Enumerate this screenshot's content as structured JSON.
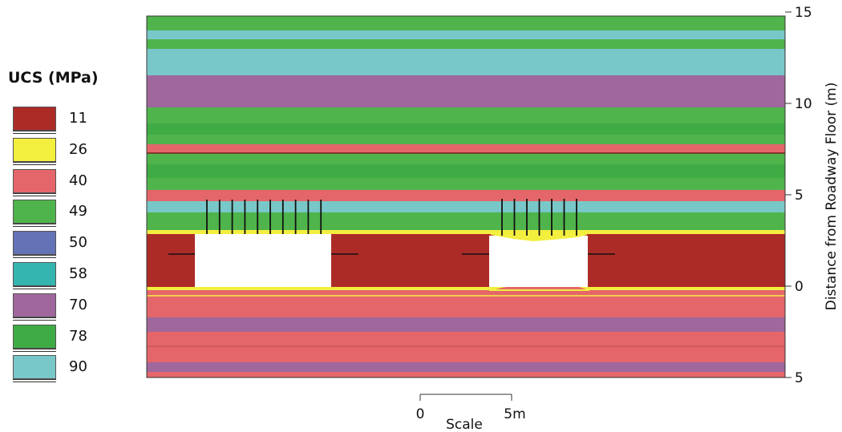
{
  "legend": {
    "title": "UCS (MPa)",
    "items": [
      {
        "value": "11",
        "color": "#ad2b27"
      },
      {
        "value": "26",
        "color": "#f3ef3f"
      },
      {
        "value": "40",
        "color": "#e5666a"
      },
      {
        "value": "49",
        "color": "#4fb44b"
      },
      {
        "value": "50",
        "color": "#6472b6"
      },
      {
        "value": "58",
        "color": "#35b5b0"
      },
      {
        "value": "70",
        "color": "#a0679d"
      },
      {
        "value": "78",
        "color": "#3fab45"
      },
      {
        "value": "90",
        "color": "#79c8c9"
      }
    ]
  },
  "axis": {
    "title": "Distance from Roadway Floor (m)",
    "ticks": [
      {
        "value": 15,
        "label": "15"
      },
      {
        "value": 10,
        "label": "10"
      },
      {
        "value": 5,
        "label": "5"
      },
      {
        "value": 0,
        "label": "0"
      },
      {
        "value": -5,
        "label": "5"
      }
    ]
  },
  "scale": {
    "title": "Scale",
    "start_label": "0",
    "end_label": "5m"
  },
  "colors": {
    "weak": "#ad2b27",
    "yellow": "#f3ef3f",
    "salmon": "#e5666a",
    "green": "#4fb44b",
    "green_dark": "#3fab45",
    "cyan": "#79c8c9",
    "purple": "#a0679d",
    "opening": "#ffffff"
  }
}
